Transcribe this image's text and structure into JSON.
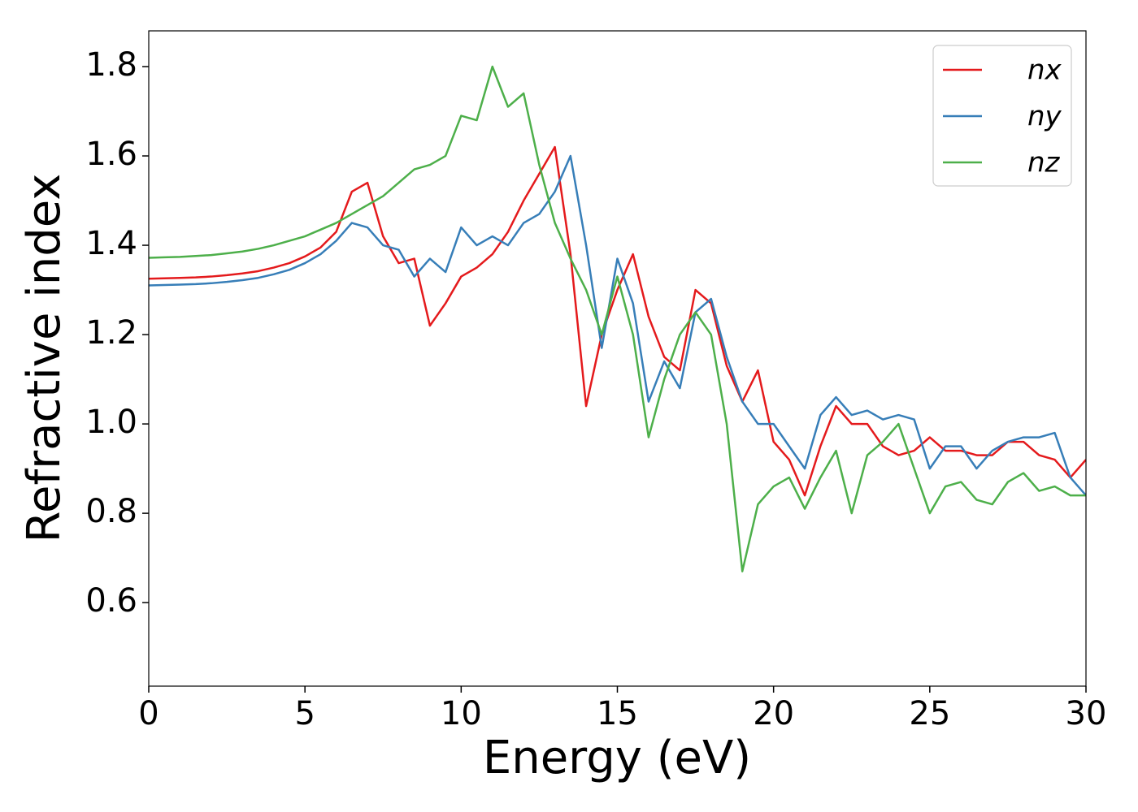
{
  "chart_data": {
    "type": "line",
    "x_label": "Energy (eV)",
    "y_label": "Refractive index",
    "x": [
      0,
      0.5,
      1,
      1.5,
      2,
      2.5,
      3,
      3.5,
      4,
      4.5,
      5,
      5.5,
      6,
      6.5,
      7,
      7.5,
      8,
      8.5,
      9,
      9.5,
      10,
      10.5,
      11,
      11.5,
      12,
      12.5,
      13,
      13.5,
      14,
      14.5,
      15,
      15.5,
      16,
      16.5,
      17,
      17.5,
      18,
      18.5,
      19,
      19.5,
      20,
      20.5,
      21,
      21.5,
      22,
      22.5,
      23,
      23.5,
      24,
      24.5,
      25,
      25.5,
      26,
      26.5,
      27,
      27.5,
      28,
      28.5,
      29,
      29.5,
      30
    ],
    "series": [
      {
        "name": "nx",
        "color": "#e41a1c",
        "values": [
          1.325,
          1.326,
          1.327,
          1.328,
          1.33,
          1.333,
          1.337,
          1.342,
          1.35,
          1.36,
          1.375,
          1.395,
          1.43,
          1.52,
          1.54,
          1.42,
          1.36,
          1.37,
          1.22,
          1.27,
          1.33,
          1.35,
          1.38,
          1.43,
          1.5,
          1.56,
          1.62,
          1.38,
          1.04,
          1.2,
          1.3,
          1.38,
          1.24,
          1.15,
          1.12,
          1.3,
          1.27,
          1.13,
          1.05,
          1.12,
          0.96,
          0.92,
          0.84,
          0.95,
          1.04,
          1.0,
          1.0,
          0.95,
          0.93,
          0.94,
          0.97,
          0.94,
          0.94,
          0.93,
          0.93,
          0.96,
          0.96,
          0.93,
          0.92,
          0.88,
          0.92
        ]
      },
      {
        "name": "ny",
        "color": "#377eb8",
        "values": [
          1.31,
          1.311,
          1.312,
          1.313,
          1.315,
          1.318,
          1.322,
          1.327,
          1.335,
          1.345,
          1.36,
          1.38,
          1.41,
          1.45,
          1.44,
          1.4,
          1.39,
          1.33,
          1.37,
          1.34,
          1.44,
          1.4,
          1.42,
          1.4,
          1.45,
          1.47,
          1.52,
          1.6,
          1.4,
          1.17,
          1.37,
          1.27,
          1.05,
          1.14,
          1.08,
          1.25,
          1.28,
          1.15,
          1.05,
          1.0,
          1.0,
          0.95,
          0.9,
          1.02,
          1.06,
          1.02,
          1.03,
          1.01,
          1.02,
          1.01,
          0.9,
          0.95,
          0.95,
          0.9,
          0.94,
          0.96,
          0.97,
          0.97,
          0.98,
          0.88,
          0.84
        ]
      },
      {
        "name": "nz",
        "color": "#4daf4a",
        "values": [
          1.372,
          1.373,
          1.374,
          1.376,
          1.378,
          1.382,
          1.386,
          1.392,
          1.4,
          1.41,
          1.42,
          1.435,
          1.45,
          1.47,
          1.49,
          1.51,
          1.54,
          1.57,
          1.58,
          1.6,
          1.69,
          1.68,
          1.8,
          1.71,
          1.74,
          1.58,
          1.45,
          1.37,
          1.3,
          1.2,
          1.33,
          1.2,
          0.97,
          1.1,
          1.2,
          1.25,
          1.2,
          1.0,
          0.67,
          0.82,
          0.86,
          0.88,
          0.81,
          0.88,
          0.94,
          0.8,
          0.93,
          0.96,
          1.0,
          0.9,
          0.8,
          0.86,
          0.87,
          0.83,
          0.82,
          0.87,
          0.89,
          0.85,
          0.86,
          0.84,
          0.84
        ]
      }
    ],
    "xlim": [
      0,
      30
    ],
    "xticks": [
      0,
      5,
      10,
      15,
      20,
      25,
      30
    ],
    "ylim": [
      0.413,
      1.88
    ],
    "yticks": [
      0.6,
      0.8,
      {
        "value": 1,
        "label": "1.0"
      },
      1.2,
      1.4,
      1.6,
      1.8
    ],
    "grid": false,
    "legend": "upper right"
  }
}
